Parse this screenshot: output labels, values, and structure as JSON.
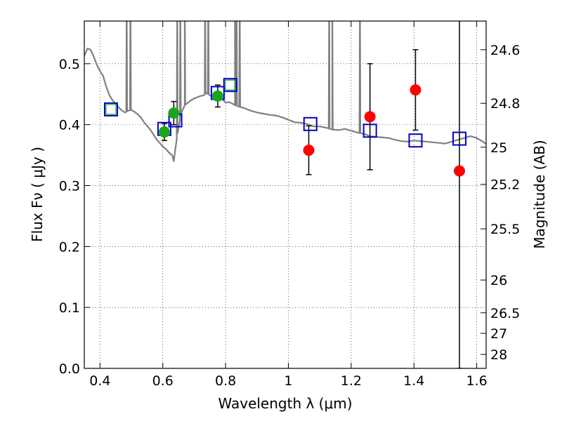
{
  "chart_data": {
    "type": "scatter",
    "xlabel": "Wavelength  λ (μm)",
    "ylabel": "Flux  Fν  ( μJy )",
    "y2label": "Magnitude (AB)",
    "xlim": [
      0.35,
      1.63
    ],
    "ylim": [
      0.0,
      0.57
    ],
    "grid": true,
    "x_ticks": [
      0.4,
      0.6,
      0.8,
      1.0,
      1.2,
      1.4,
      1.6
    ],
    "x_tick_labels": [
      "0.4",
      "0.6",
      "0.8",
      "1",
      "1.2",
      "1.4",
      "1.6"
    ],
    "y_ticks": [
      0.0,
      0.1,
      0.2,
      0.3,
      0.4,
      0.5
    ],
    "y_tick_labels": [
      "0.0",
      "0.1",
      "0.2",
      "0.3",
      "0.4",
      "0.5"
    ],
    "mag_ticks": [
      {
        "label": "24.6",
        "flux": 0.523
      },
      {
        "label": "24.8",
        "flux": 0.435
      },
      {
        "label": "25",
        "flux": 0.363
      },
      {
        "label": "25.2",
        "flux": 0.302
      },
      {
        "label": "25.5",
        "flux": 0.229
      },
      {
        "label": "26",
        "flux": 0.145
      },
      {
        "label": "26.5",
        "flux": 0.0912
      },
      {
        "label": "27",
        "flux": 0.0575
      },
      {
        "label": "28",
        "flux": 0.0229
      }
    ],
    "series": [
      {
        "kind": "model_spectrum",
        "color": "#808080",
        "points": [
          [
            0.35,
            0.513
          ],
          [
            0.36,
            0.525
          ],
          [
            0.37,
            0.523
          ],
          [
            0.38,
            0.512
          ],
          [
            0.39,
            0.498
          ],
          [
            0.4,
            0.488
          ],
          [
            0.41,
            0.48
          ],
          [
            0.42,
            0.462
          ],
          [
            0.43,
            0.448
          ],
          [
            0.44,
            0.44
          ],
          [
            0.45,
            0.434
          ],
          [
            0.46,
            0.428
          ],
          [
            0.47,
            0.423
          ],
          [
            0.48,
            0.42
          ],
          [
            0.49,
            0.423
          ],
          [
            0.5,
            0.424
          ],
          [
            0.51,
            0.421
          ],
          [
            0.52,
            0.417
          ],
          [
            0.53,
            0.412
          ],
          [
            0.54,
            0.404
          ],
          [
            0.55,
            0.398
          ],
          [
            0.56,
            0.392
          ],
          [
            0.57,
            0.384
          ],
          [
            0.58,
            0.376
          ],
          [
            0.59,
            0.37
          ],
          [
            0.6,
            0.364
          ],
          [
            0.61,
            0.36
          ],
          [
            0.62,
            0.354
          ],
          [
            0.63,
            0.35
          ],
          [
            0.635,
            0.34
          ],
          [
            0.64,
            0.36
          ],
          [
            0.65,
            0.395
          ],
          [
            0.66,
            0.42
          ],
          [
            0.67,
            0.432
          ],
          [
            0.68,
            0.436
          ],
          [
            0.69,
            0.44
          ],
          [
            0.7,
            0.443
          ],
          [
            0.71,
            0.445
          ],
          [
            0.72,
            0.447
          ],
          [
            0.73,
            0.448
          ],
          [
            0.74,
            0.452
          ],
          [
            0.75,
            0.448
          ],
          [
            0.76,
            0.446
          ],
          [
            0.77,
            0.45
          ],
          [
            0.78,
            0.447
          ],
          [
            0.79,
            0.442
          ],
          [
            0.8,
            0.436
          ],
          [
            0.81,
            0.437
          ],
          [
            0.82,
            0.435
          ],
          [
            0.83,
            0.432
          ],
          [
            0.84,
            0.43
          ],
          [
            0.86,
            0.427
          ],
          [
            0.88,
            0.423
          ],
          [
            0.9,
            0.42
          ],
          [
            0.92,
            0.418
          ],
          [
            0.94,
            0.416
          ],
          [
            0.96,
            0.415
          ],
          [
            0.98,
            0.412
          ],
          [
            1.0,
            0.408
          ],
          [
            1.02,
            0.404
          ],
          [
            1.04,
            0.403
          ],
          [
            1.06,
            0.401
          ],
          [
            1.08,
            0.397
          ],
          [
            1.1,
            0.397
          ],
          [
            1.12,
            0.395
          ],
          [
            1.14,
            0.392
          ],
          [
            1.16,
            0.391
          ],
          [
            1.18,
            0.393
          ],
          [
            1.2,
            0.39
          ],
          [
            1.22,
            0.387
          ],
          [
            1.24,
            0.385
          ],
          [
            1.26,
            0.381
          ],
          [
            1.28,
            0.38
          ],
          [
            1.3,
            0.379
          ],
          [
            1.32,
            0.378
          ],
          [
            1.34,
            0.375
          ],
          [
            1.36,
            0.373
          ],
          [
            1.38,
            0.372
          ],
          [
            1.4,
            0.374
          ],
          [
            1.42,
            0.373
          ],
          [
            1.44,
            0.372
          ],
          [
            1.46,
            0.371
          ],
          [
            1.48,
            0.37
          ],
          [
            1.5,
            0.369
          ],
          [
            1.52,
            0.372
          ],
          [
            1.54,
            0.375
          ],
          [
            1.56,
            0.378
          ],
          [
            1.58,
            0.381
          ],
          [
            1.6,
            0.378
          ],
          [
            1.62,
            0.372
          ],
          [
            1.63,
            0.368
          ]
        ],
        "emission_lines": [
          0.485,
          0.497,
          0.646,
          0.656,
          0.67,
          0.735,
          0.745,
          0.83,
          0.835,
          0.845,
          1.13,
          1.14,
          1.228
        ]
      },
      {
        "kind": "model_photometry",
        "marker": "open-square",
        "color": "#0000cc",
        "points": [
          [
            0.435,
            0.425
          ],
          [
            0.605,
            0.393
          ],
          [
            0.64,
            0.407
          ],
          [
            0.775,
            0.452
          ],
          [
            0.815,
            0.465
          ],
          [
            1.07,
            0.401
          ],
          [
            1.26,
            0.39
          ],
          [
            1.405,
            0.374
          ],
          [
            1.545,
            0.377
          ]
        ]
      },
      {
        "kind": "observed_optical",
        "marker": "filled-circle",
        "color": "#1aa61a",
        "points": [
          {
            "x": 0.435,
            "y": 0.425,
            "err": null,
            "square_only": true
          },
          {
            "x": 0.605,
            "y": 0.388,
            "err": 0.014
          },
          {
            "x": 0.635,
            "y": 0.419,
            "err": 0.019
          },
          {
            "x": 0.775,
            "y": 0.447,
            "err": 0.018
          },
          {
            "x": 0.815,
            "y": 0.465,
            "err": null,
            "square_only": true
          }
        ]
      },
      {
        "kind": "observed_nir",
        "marker": "filled-circle",
        "color": "#ff0000",
        "points": [
          {
            "x": 1.065,
            "y": 0.358,
            "err": 0.04
          },
          {
            "x": 1.26,
            "y": 0.413,
            "err": 0.087
          },
          {
            "x": 1.405,
            "y": 0.457,
            "err": 0.066
          },
          {
            "x": 1.545,
            "y": 0.324,
            "err_low": 0.324,
            "err_high": 0.6
          }
        ]
      }
    ]
  }
}
